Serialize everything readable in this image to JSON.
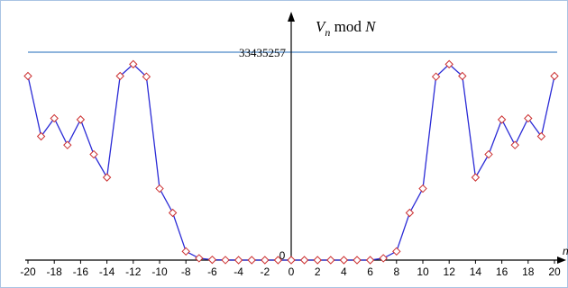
{
  "chart_data": {
    "type": "line",
    "title_var": "V",
    "title_sub": "n",
    "title_mod": " mod ",
    "title_N": "N",
    "x_axis_label": "n",
    "ref_value": 33435257,
    "ref_label": "33435257",
    "zero_label": "0",
    "xlim": [
      -20,
      20
    ],
    "ylim": [
      0,
      33435257
    ],
    "x_ticks": [
      -20,
      -18,
      -16,
      -14,
      -12,
      -10,
      -8,
      -6,
      -4,
      -2,
      0,
      2,
      4,
      6,
      8,
      10,
      12,
      14,
      16,
      18,
      20
    ],
    "x": [
      -20,
      -19,
      -18,
      -17,
      -16,
      -15,
      -14,
      -13,
      -12,
      -11,
      -10,
      -9,
      -8,
      -7,
      -6,
      -5,
      -4,
      -3,
      -2,
      -1,
      0,
      1,
      2,
      3,
      4,
      5,
      6,
      7,
      8,
      9,
      10,
      11,
      12,
      13,
      14,
      15,
      16,
      17,
      18,
      19,
      20
    ],
    "y": [
      29600000,
      19900000,
      22800000,
      18500000,
      22600000,
      17000000,
      13300000,
      29600000,
      31500000,
      29500000,
      11500000,
      7600000,
      1400000,
      300000,
      50000,
      10000,
      0,
      0,
      0,
      0,
      0,
      0,
      0,
      0,
      0,
      0,
      0,
      300000,
      1400000,
      7600000,
      11500000,
      29500000,
      31500000,
      29600000,
      13300000,
      17000000,
      22600000,
      18500000,
      22800000,
      19900000,
      29600000
    ],
    "colors": {
      "line": "#2b2bd6",
      "marker": "#cc3030",
      "ref_line": "#4a86c8",
      "axis": "#000000",
      "frame": "#a9c4e4"
    }
  }
}
